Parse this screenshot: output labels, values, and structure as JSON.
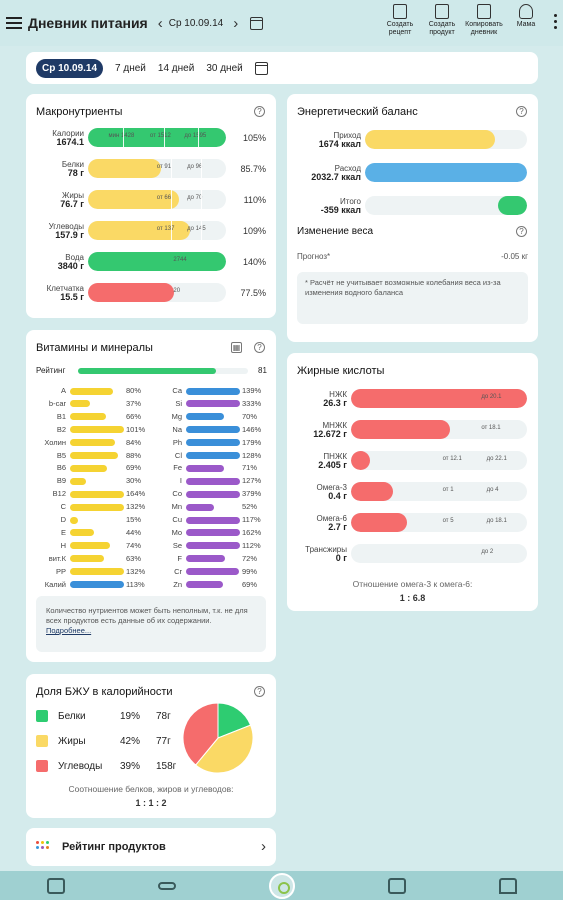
{
  "header": {
    "title": "Дневник питания",
    "date": "Ср 10.09.14",
    "actions": [
      "Создать рецепт",
      "Создать продукт",
      "Копировать дневник",
      "Мама"
    ]
  },
  "periods": {
    "active": "Ср 10.09.14",
    "options": [
      "7 дней",
      "14 дней",
      "30 дней"
    ]
  },
  "macros": {
    "title": "Макронутриенты",
    "rows": [
      {
        "name": "Калории",
        "value": "1674.1",
        "percent": "105%",
        "markers": [
          "мин 1428",
          "от 1512",
          "до 1595"
        ],
        "fill": 1.0,
        "color": "#34c870"
      },
      {
        "name": "Белки",
        "value": "78 г",
        "percent": "85.7%",
        "markers": [
          "от 91",
          "до 96"
        ],
        "fill": 0.53,
        "color": "#fad965"
      },
      {
        "name": "Жиры",
        "value": "76.7 г",
        "percent": "110%",
        "markers": [
          "от 66",
          "до 70"
        ],
        "fill": 0.66,
        "color": "#fad965"
      },
      {
        "name": "Углеводы",
        "value": "157.9 г",
        "percent": "109%",
        "markers": [
          "от 137",
          "до 145"
        ],
        "fill": 0.74,
        "color": "#fad965"
      },
      {
        "name": "Вода",
        "value": "3840 г",
        "percent": "140%",
        "markers": [
          "2744"
        ],
        "fill": 1.0,
        "color": "#34c870"
      },
      {
        "name": "Клетчатка",
        "value": "15.5 г",
        "percent": "77.5%",
        "markers": [
          "20"
        ],
        "fill": 0.62,
        "color": "#f56c6c"
      }
    ]
  },
  "energy": {
    "title": "Энергетический баланс",
    "rows": [
      {
        "name": "Приход",
        "value": "1674 ккал",
        "fill": 0.8,
        "color": "#fad965"
      },
      {
        "name": "Расход",
        "value": "2032.7 ккал",
        "fill": 1.0,
        "color": "#5ab0e6"
      },
      {
        "name": "Итого",
        "value": "-359 ккал",
        "fill": 0.18,
        "color": "#34c870"
      }
    ],
    "weight_title": "Изменение веса",
    "forecast_label": "Прогноз*",
    "forecast_value": "-0.05 кг",
    "note": "* Расчёт не учитывает возможные колебания веса из-за изменения водного баланса"
  },
  "vitamins": {
    "title": "Витамины и минералы",
    "rating_label": "Рейтинг",
    "rating_value": "81",
    "rating_fill": 0.81,
    "left": [
      {
        "name": "A",
        "pct": "80%",
        "fill": 0.8,
        "color": "#f5d332"
      },
      {
        "name": "b-car",
        "pct": "37%",
        "fill": 0.37,
        "color": "#f5d332"
      },
      {
        "name": "B1",
        "pct": "66%",
        "fill": 0.66,
        "color": "#f5d332"
      },
      {
        "name": "B2",
        "pct": "101%",
        "fill": 1.0,
        "color": "#f5d332"
      },
      {
        "name": "Холин",
        "pct": "84%",
        "fill": 0.84,
        "color": "#f5d332"
      },
      {
        "name": "B5",
        "pct": "88%",
        "fill": 0.88,
        "color": "#f5d332"
      },
      {
        "name": "B6",
        "pct": "69%",
        "fill": 0.69,
        "color": "#f5d332"
      },
      {
        "name": "B9",
        "pct": "30%",
        "fill": 0.3,
        "color": "#f5d332"
      },
      {
        "name": "B12",
        "pct": "164%",
        "fill": 1.0,
        "color": "#f5d332"
      },
      {
        "name": "C",
        "pct": "132%",
        "fill": 1.0,
        "color": "#f5d332"
      },
      {
        "name": "D",
        "pct": "15%",
        "fill": 0.15,
        "color": "#f5d332"
      },
      {
        "name": "E",
        "pct": "44%",
        "fill": 0.44,
        "color": "#f5d332"
      },
      {
        "name": "H",
        "pct": "74%",
        "fill": 0.74,
        "color": "#f5d332"
      },
      {
        "name": "вит.К",
        "pct": "63%",
        "fill": 0.63,
        "color": "#f5d332"
      },
      {
        "name": "PP",
        "pct": "132%",
        "fill": 1.0,
        "color": "#f5d332"
      },
      {
        "name": "Калий",
        "pct": "113%",
        "fill": 1.0,
        "color": "#3a8fd9"
      }
    ],
    "right": [
      {
        "name": "Ca",
        "pct": "139%",
        "fill": 1.0,
        "color": "#3a8fd9"
      },
      {
        "name": "Si",
        "pct": "333%",
        "fill": 1.0,
        "color": "#9b59c9"
      },
      {
        "name": "Mg",
        "pct": "70%",
        "fill": 0.7,
        "color": "#3a8fd9"
      },
      {
        "name": "Na",
        "pct": "146%",
        "fill": 1.0,
        "color": "#3a8fd9"
      },
      {
        "name": "Ph",
        "pct": "179%",
        "fill": 1.0,
        "color": "#3a8fd9"
      },
      {
        "name": "Cl",
        "pct": "128%",
        "fill": 1.0,
        "color": "#3a8fd9"
      },
      {
        "name": "Fe",
        "pct": "71%",
        "fill": 0.71,
        "color": "#9b59c9"
      },
      {
        "name": "I",
        "pct": "127%",
        "fill": 1.0,
        "color": "#9b59c9"
      },
      {
        "name": "Co",
        "pct": "379%",
        "fill": 1.0,
        "color": "#9b59c9"
      },
      {
        "name": "Mn",
        "pct": "52%",
        "fill": 0.52,
        "color": "#9b59c9"
      },
      {
        "name": "Cu",
        "pct": "117%",
        "fill": 1.0,
        "color": "#9b59c9"
      },
      {
        "name": "Mo",
        "pct": "162%",
        "fill": 1.0,
        "color": "#9b59c9"
      },
      {
        "name": "Se",
        "pct": "112%",
        "fill": 1.0,
        "color": "#9b59c9"
      },
      {
        "name": "F",
        "pct": "72%",
        "fill": 0.72,
        "color": "#9b59c9"
      },
      {
        "name": "Cr",
        "pct": "99%",
        "fill": 0.99,
        "color": "#9b59c9"
      },
      {
        "name": "Zn",
        "pct": "69%",
        "fill": 0.69,
        "color": "#9b59c9"
      }
    ],
    "note": "Количество нутриентов может быть неполным, т.к. не для всех продуктов есть данные об их содержании.",
    "more_link": "Подробнее..."
  },
  "fatty": {
    "title": "Жирные кислоты",
    "rows": [
      {
        "name": "НЖК",
        "value": "26.3 г",
        "fill": 1.0,
        "markers": [
          "до 20.1"
        ]
      },
      {
        "name": "МНЖК",
        "value": "12.672 г",
        "fill": 0.56,
        "markers": [
          "от 18.1"
        ]
      },
      {
        "name": "ПНЖК",
        "value": "2.405 г",
        "fill": 0.11,
        "markers": [
          "от 12.1",
          "до 22.1"
        ]
      },
      {
        "name": "Омега-3",
        "value": "0.4 г",
        "fill": 0.24,
        "markers": [
          "от 1",
          "до 4"
        ]
      },
      {
        "name": "Омега-6",
        "value": "2.7 г",
        "fill": 0.32,
        "markers": [
          "от 5",
          "до 18.1"
        ]
      },
      {
        "name": "Трансжиры",
        "value": "0 г",
        "fill": 0,
        "markers": [
          "до 2"
        ]
      }
    ],
    "ratio_label": "Отношение омега-3 к омега-6:",
    "ratio_value": "1 : 6.8"
  },
  "bzu": {
    "title": "Доля БЖУ в калорийности",
    "items": [
      {
        "name": "Белки",
        "pct": "19%",
        "grams": "78г",
        "share": 19,
        "color": "#2ecc71"
      },
      {
        "name": "Жиры",
        "pct": "42%",
        "grams": "77г",
        "share": 42,
        "color": "#fad965"
      },
      {
        "name": "Углеводы",
        "pct": "39%",
        "grams": "158г",
        "share": 39,
        "color": "#f56c6c"
      }
    ],
    "ratio_label": "Соотношение белков, жиров и углеводов:",
    "ratio_value": "1 : 1 : 2"
  },
  "rating_products": {
    "label": "Рейтинг продуктов"
  },
  "colors": {
    "accent": "#1f3a66",
    "background": "#d4ebec",
    "bottom_bar": "#9fd0d1"
  }
}
